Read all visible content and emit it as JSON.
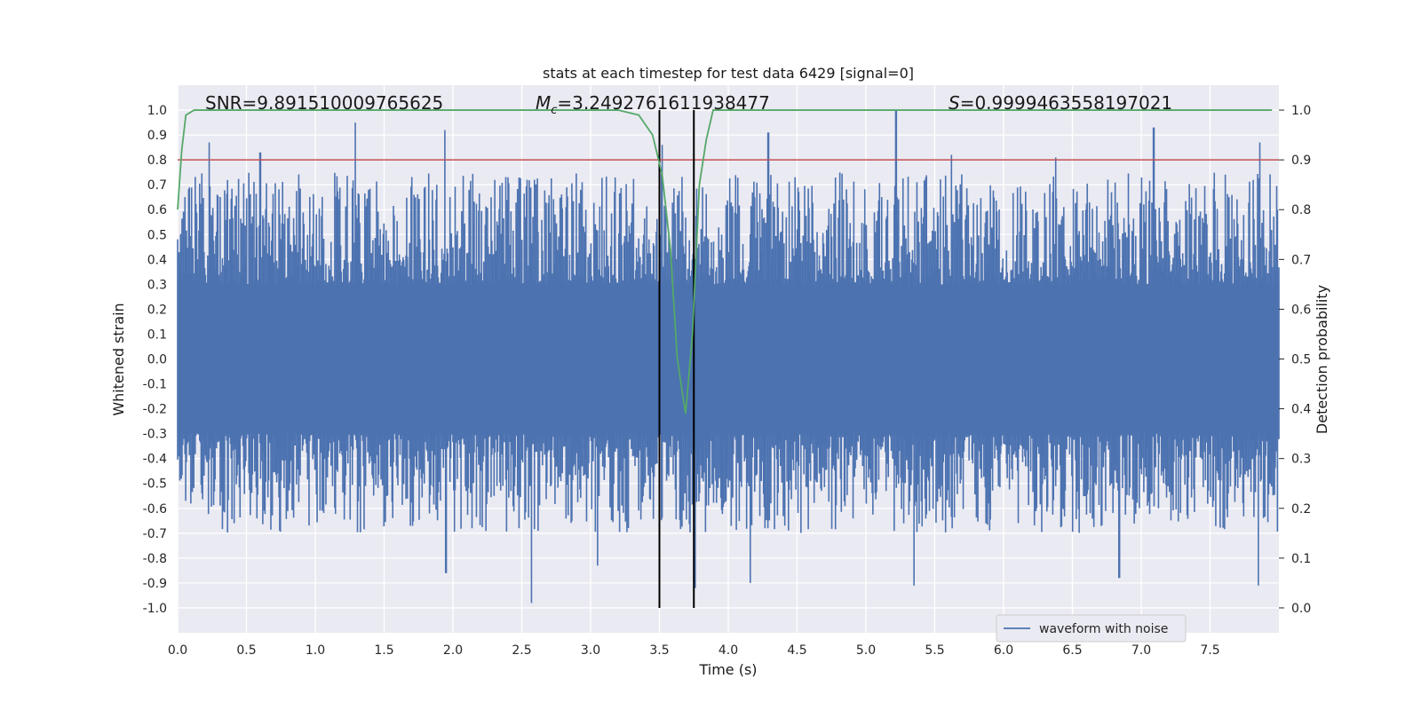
{
  "chart_data": {
    "type": "line",
    "title": "stats at each timestep for test data 6429 [signal=0]",
    "xlabel": "Time (s)",
    "ylabel": "Whitened strain",
    "ylabel_right": "Detection probability",
    "xlim": [
      0.0,
      8.0
    ],
    "ylim": [
      -1.1,
      1.1
    ],
    "ylim_right": [
      -0.05,
      1.05
    ],
    "xticks": [
      "0.0",
      "0.5",
      "1.0",
      "1.5",
      "2.0",
      "2.5",
      "3.0",
      "3.5",
      "4.0",
      "4.5",
      "5.0",
      "5.5",
      "6.0",
      "6.5",
      "7.0",
      "7.5"
    ],
    "yticks": [
      "1.0",
      "0.9",
      "0.8",
      "0.7",
      "0.6",
      "0.5",
      "0.4",
      "0.3",
      "0.2",
      "0.1",
      "0.0",
      "-0.1",
      "-0.2",
      "-0.3",
      "-0.4",
      "-0.5",
      "-0.6",
      "-0.7",
      "-0.8",
      "-0.9",
      "-1.0"
    ],
    "yticks_right": [
      "1.0",
      "0.9",
      "0.8",
      "0.7",
      "0.6",
      "0.5",
      "0.4",
      "0.3",
      "0.2",
      "0.1",
      "0.0"
    ],
    "grid": true,
    "annotations": {
      "snr": "SNR=9.891510009765625",
      "mc_symbol": "M",
      "mc_sub": "c",
      "mc_value": "=3.2492761611938477",
      "s_symbol": "S",
      "s_value": "=0.9999463558197021"
    },
    "legend": {
      "label": "waveform with noise",
      "position": "lower-right"
    },
    "threshold": {
      "value": 0.9,
      "axis": "right",
      "color": "#c44e52"
    },
    "vertical_lines": [
      3.5,
      3.75
    ],
    "series": [
      {
        "name": "waveform with noise",
        "color": "#4c72b0",
        "axis": "left",
        "description": "whitened strain noise sampled over 0-8 s",
        "peaks_positive": [
          [
            0.23,
            0.87
          ],
          [
            0.6,
            0.83
          ],
          [
            1.29,
            0.95
          ],
          [
            1.94,
            0.92
          ],
          [
            2.4,
            0.73
          ],
          [
            3.52,
            0.86
          ],
          [
            4.29,
            0.91
          ],
          [
            5.22,
            1.0
          ],
          [
            5.62,
            0.82
          ],
          [
            6.38,
            0.81
          ],
          [
            7.09,
            0.93
          ],
          [
            7.86,
            0.87
          ]
        ],
        "peaks_negative": [
          [
            2.57,
            -0.98
          ],
          [
            1.95,
            -0.86
          ],
          [
            3.05,
            -0.83
          ],
          [
            3.76,
            -0.92
          ],
          [
            4.16,
            -0.9
          ],
          [
            5.35,
            -0.91
          ],
          [
            6.84,
            -0.88
          ],
          [
            7.85,
            -0.91
          ]
        ]
      },
      {
        "name": "detection probability",
        "color": "#55a868",
        "axis": "right",
        "x": [
          0.0,
          0.03,
          0.06,
          0.12,
          3.2,
          3.35,
          3.45,
          3.52,
          3.58,
          3.63,
          3.69,
          3.74,
          3.79,
          3.84,
          3.89,
          7.95
        ],
        "values": [
          0.8,
          0.92,
          0.99,
          1.0,
          1.0,
          0.99,
          0.95,
          0.87,
          0.72,
          0.5,
          0.39,
          0.55,
          0.85,
          0.94,
          1.0,
          1.0
        ]
      }
    ]
  }
}
